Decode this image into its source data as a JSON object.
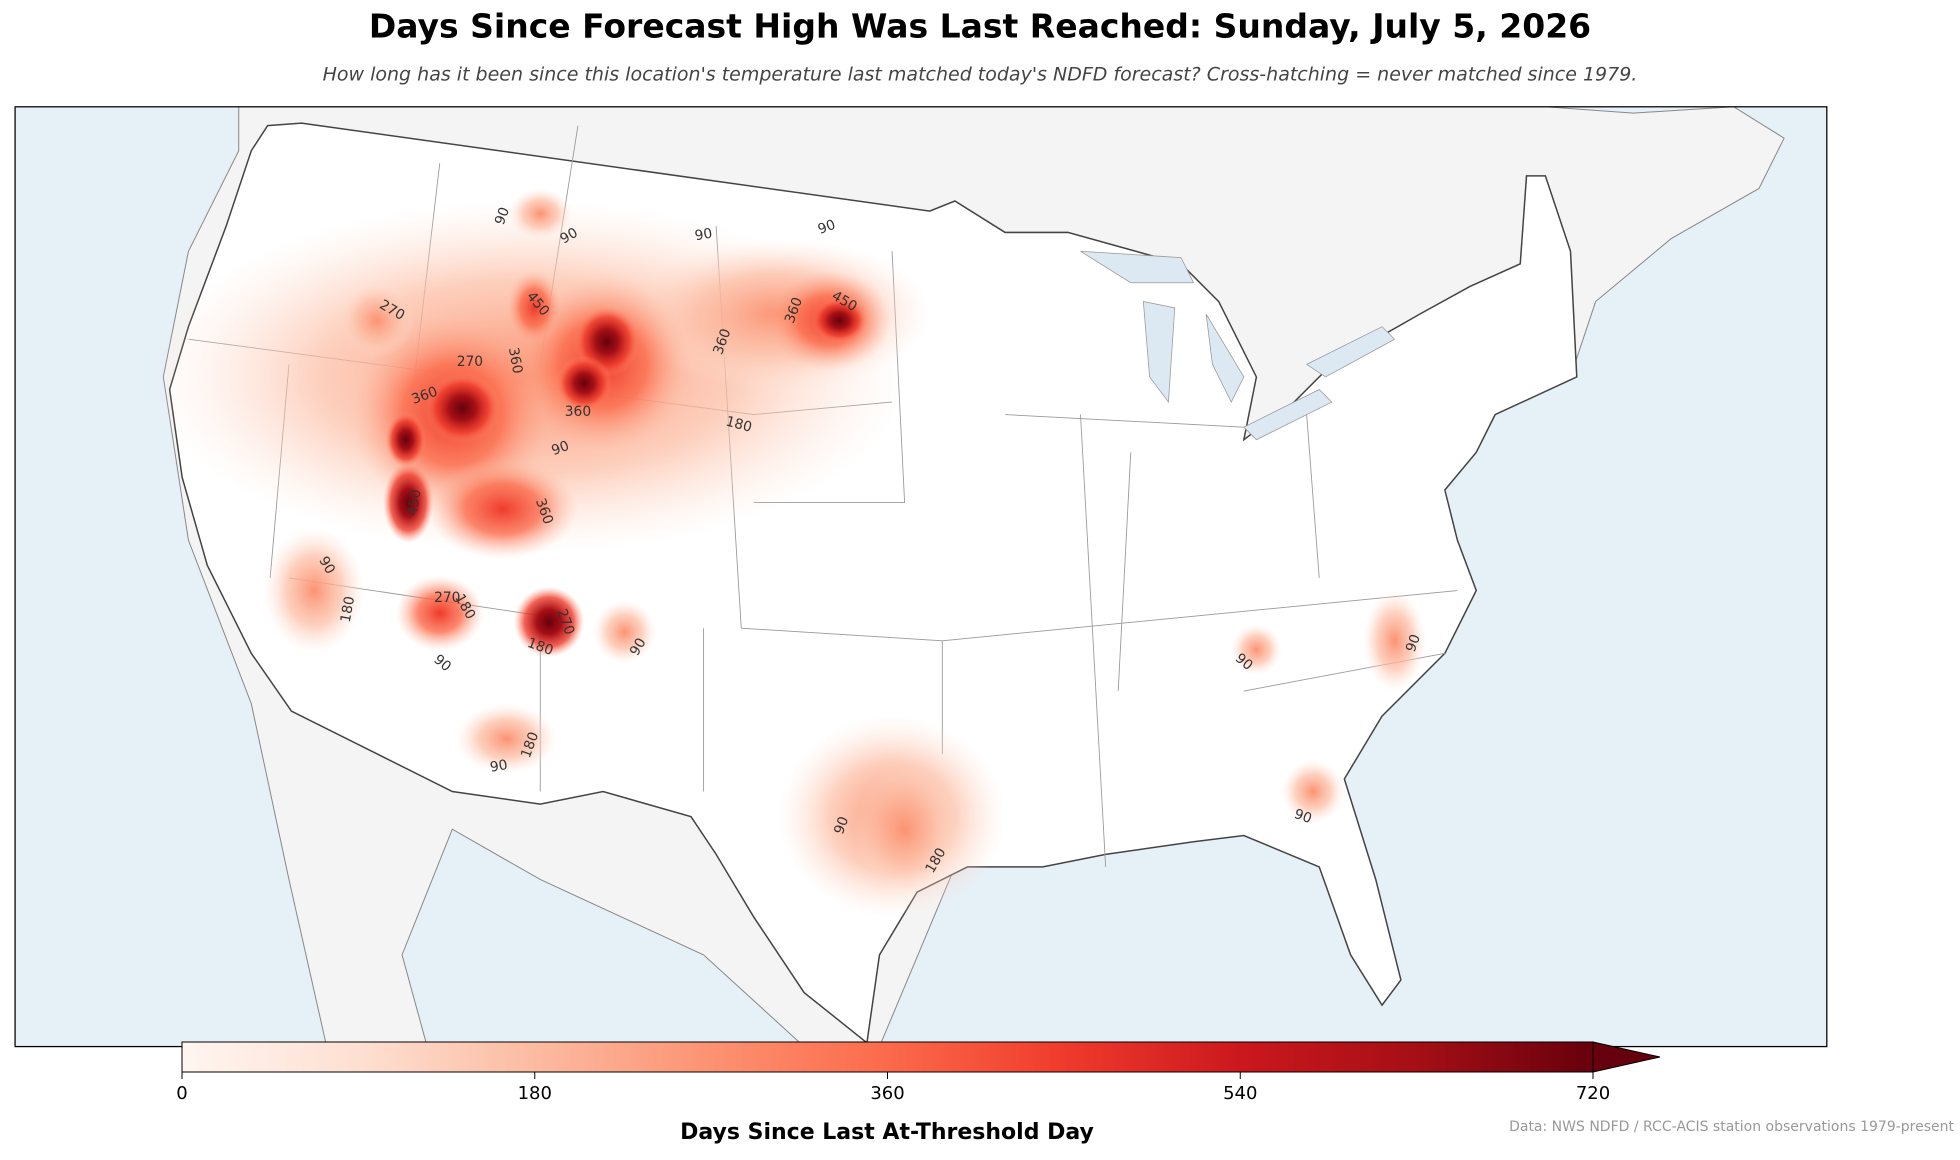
{
  "title": "Days Since Forecast High Was Last Reached: Sunday, July 5, 2026",
  "subtitle": "How long has it been since this location's temperature last matched today's NDFD forecast? Cross-hatching = never matched since 1979.",
  "colorbar": {
    "label": "Days Since Last At-Threshold Day",
    "lim": [
      0,
      720
    ],
    "ticks": [
      0,
      180,
      360,
      540,
      720
    ],
    "extend": "max",
    "colormap": [
      "#fff5f0",
      "#fee0d2",
      "#fcbba1",
      "#fc9272",
      "#fb6a4a",
      "#ef3b2c",
      "#cb181d",
      "#a50f15",
      "#67000d"
    ]
  },
  "contour_labels": [
    90,
    90,
    90,
    90,
    270,
    450,
    450,
    360,
    360,
    360,
    270,
    360,
    360,
    180,
    90,
    90,
    180,
    270,
    180,
    90,
    180,
    270,
    90,
    180,
    90,
    90,
    180,
    90,
    90,
    90,
    360,
    450
  ],
  "source": "Data: NWS NDFD / RCC-ACIS station observations 1979-present"
}
